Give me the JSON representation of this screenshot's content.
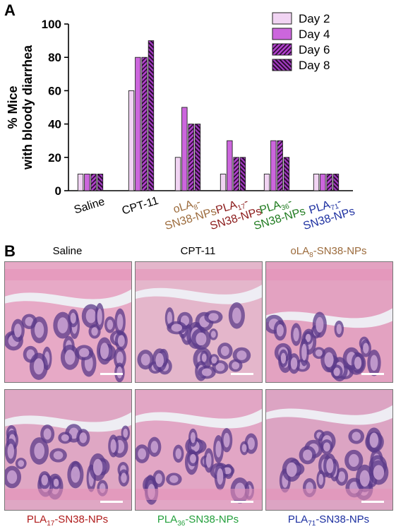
{
  "panel_a_letter": "A",
  "panel_b_letter": "B",
  "chart_data": {
    "type": "bar",
    "ylabel_line1": "% Mice",
    "ylabel_line2": "with bloody diarrhea",
    "ylim": [
      0,
      100
    ],
    "yticks": [
      0,
      20,
      40,
      60,
      80,
      100
    ],
    "legend_position": "top-right",
    "categories": [
      {
        "lines": [
          "Saline"
        ],
        "color": "#000000"
      },
      {
        "lines": [
          "CPT-11"
        ],
        "color": "#000000"
      },
      {
        "lines": [
          "oLA8-",
          "SN38-NPs"
        ],
        "color": "#9c6b3c",
        "sub": "8"
      },
      {
        "lines": [
          "PLA17-",
          "SN38-NPs"
        ],
        "color": "#8b1a1a",
        "sub": "17"
      },
      {
        "lines": [
          "PLA36-",
          "SN38-NPs"
        ],
        "color": "#1e7a1e",
        "sub": "36"
      },
      {
        "lines": [
          "PLA71-",
          "SN38-NPs"
        ],
        "color": "#1c2fa0",
        "sub": "71"
      }
    ],
    "series": [
      {
        "name": "Day 2",
        "fill": "#f1d4f3",
        "pattern": "none",
        "values": [
          10,
          60,
          20,
          10,
          10,
          10
        ]
      },
      {
        "name": "Day 4",
        "fill": "#cc66dd",
        "pattern": "none",
        "values": [
          10,
          80,
          50,
          30,
          30,
          10
        ]
      },
      {
        "name": "Day 6",
        "fill": "#b040cc",
        "pattern": "diag-up",
        "values": [
          10,
          80,
          40,
          20,
          30,
          10
        ]
      },
      {
        "name": "Day 8",
        "fill": "#a13ac0",
        "pattern": "diag-down",
        "values": [
          10,
          90,
          40,
          20,
          20,
          10
        ]
      }
    ]
  },
  "micrographs": [
    {
      "label": "Saline",
      "label_color": "#000000",
      "stain_bg": "#e7a9c6"
    },
    {
      "label": "CPT-11",
      "label_color": "#000000",
      "stain_bg": "#e4b6cb"
    },
    {
      "label_pre": "oLA",
      "label_sub": "8",
      "label_post": "-SN38-NPs",
      "label_color": "#9c6b3c",
      "stain_bg": "#e3a2c1"
    },
    {
      "label_pre": "PLA",
      "label_sub": "17",
      "label_post": "-SN38-NPs",
      "label_color": "#b01c1c",
      "stain_bg": "#dfa7c4"
    },
    {
      "label_pre": "PLA",
      "label_sub": "36",
      "label_post": "-SN38-NPs",
      "label_color": "#23a03c",
      "stain_bg": "#e2a6c5"
    },
    {
      "label_pre": "PLA",
      "label_sub": "71",
      "label_post": "-SN38-NPs",
      "label_color": "#1c2fa0",
      "stain_bg": "#dca4c3"
    }
  ]
}
